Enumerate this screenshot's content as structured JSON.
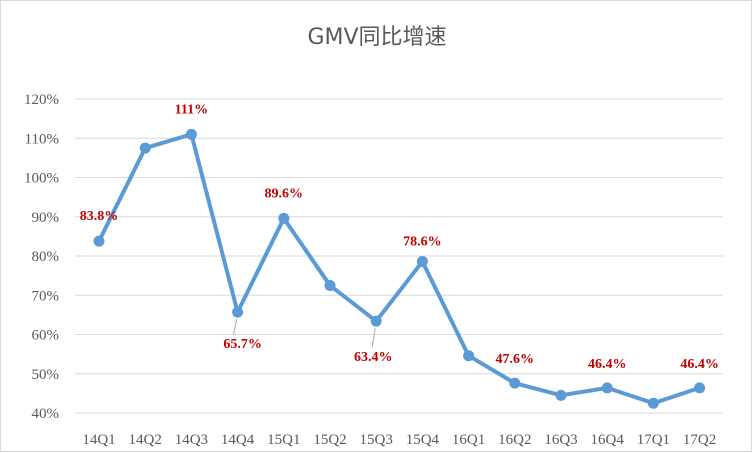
{
  "chart_data": {
    "type": "line",
    "title": "GMV同比增速",
    "categories": [
      "14Q1",
      "14Q2",
      "14Q3",
      "14Q4",
      "15Q1",
      "15Q2",
      "15Q3",
      "15Q4",
      "16Q1",
      "16Q2",
      "16Q3",
      "16Q4",
      "17Q1",
      "17Q2"
    ],
    "series": [
      {
        "values": [
          83.8,
          107.5,
          111,
          65.7,
          89.6,
          72.5,
          63.4,
          78.6,
          54.6,
          47.6,
          44.5,
          46.4,
          42.5,
          46.4
        ]
      }
    ],
    "ylim": [
      40,
      120
    ],
    "yticks": [
      40,
      50,
      60,
      70,
      80,
      90,
      100,
      110,
      120
    ],
    "ytick_labels": [
      "40%",
      "50%",
      "60%",
      "70%",
      "80%",
      "90%",
      "100%",
      "110%",
      "120%"
    ],
    "xlabel": "",
    "ylabel": "",
    "grid": true,
    "legend": "none",
    "data_labels": [
      {
        "index": 0,
        "text": "83.8%"
      },
      {
        "index": 2,
        "text": "111%"
      },
      {
        "index": 3,
        "text": "65.7%"
      },
      {
        "index": 4,
        "text": "89.6%"
      },
      {
        "index": 6,
        "text": "63.4%"
      },
      {
        "index": 7,
        "text": "78.6%"
      },
      {
        "index": 9,
        "text": "47.6%"
      },
      {
        "index": 11,
        "text": "46.4%"
      },
      {
        "index": 13,
        "text": "46.4%"
      }
    ],
    "colors": {
      "line": "#5b9bd5",
      "label": "#c00000",
      "grid": "#d9d9d9",
      "text": "#595959"
    }
  }
}
